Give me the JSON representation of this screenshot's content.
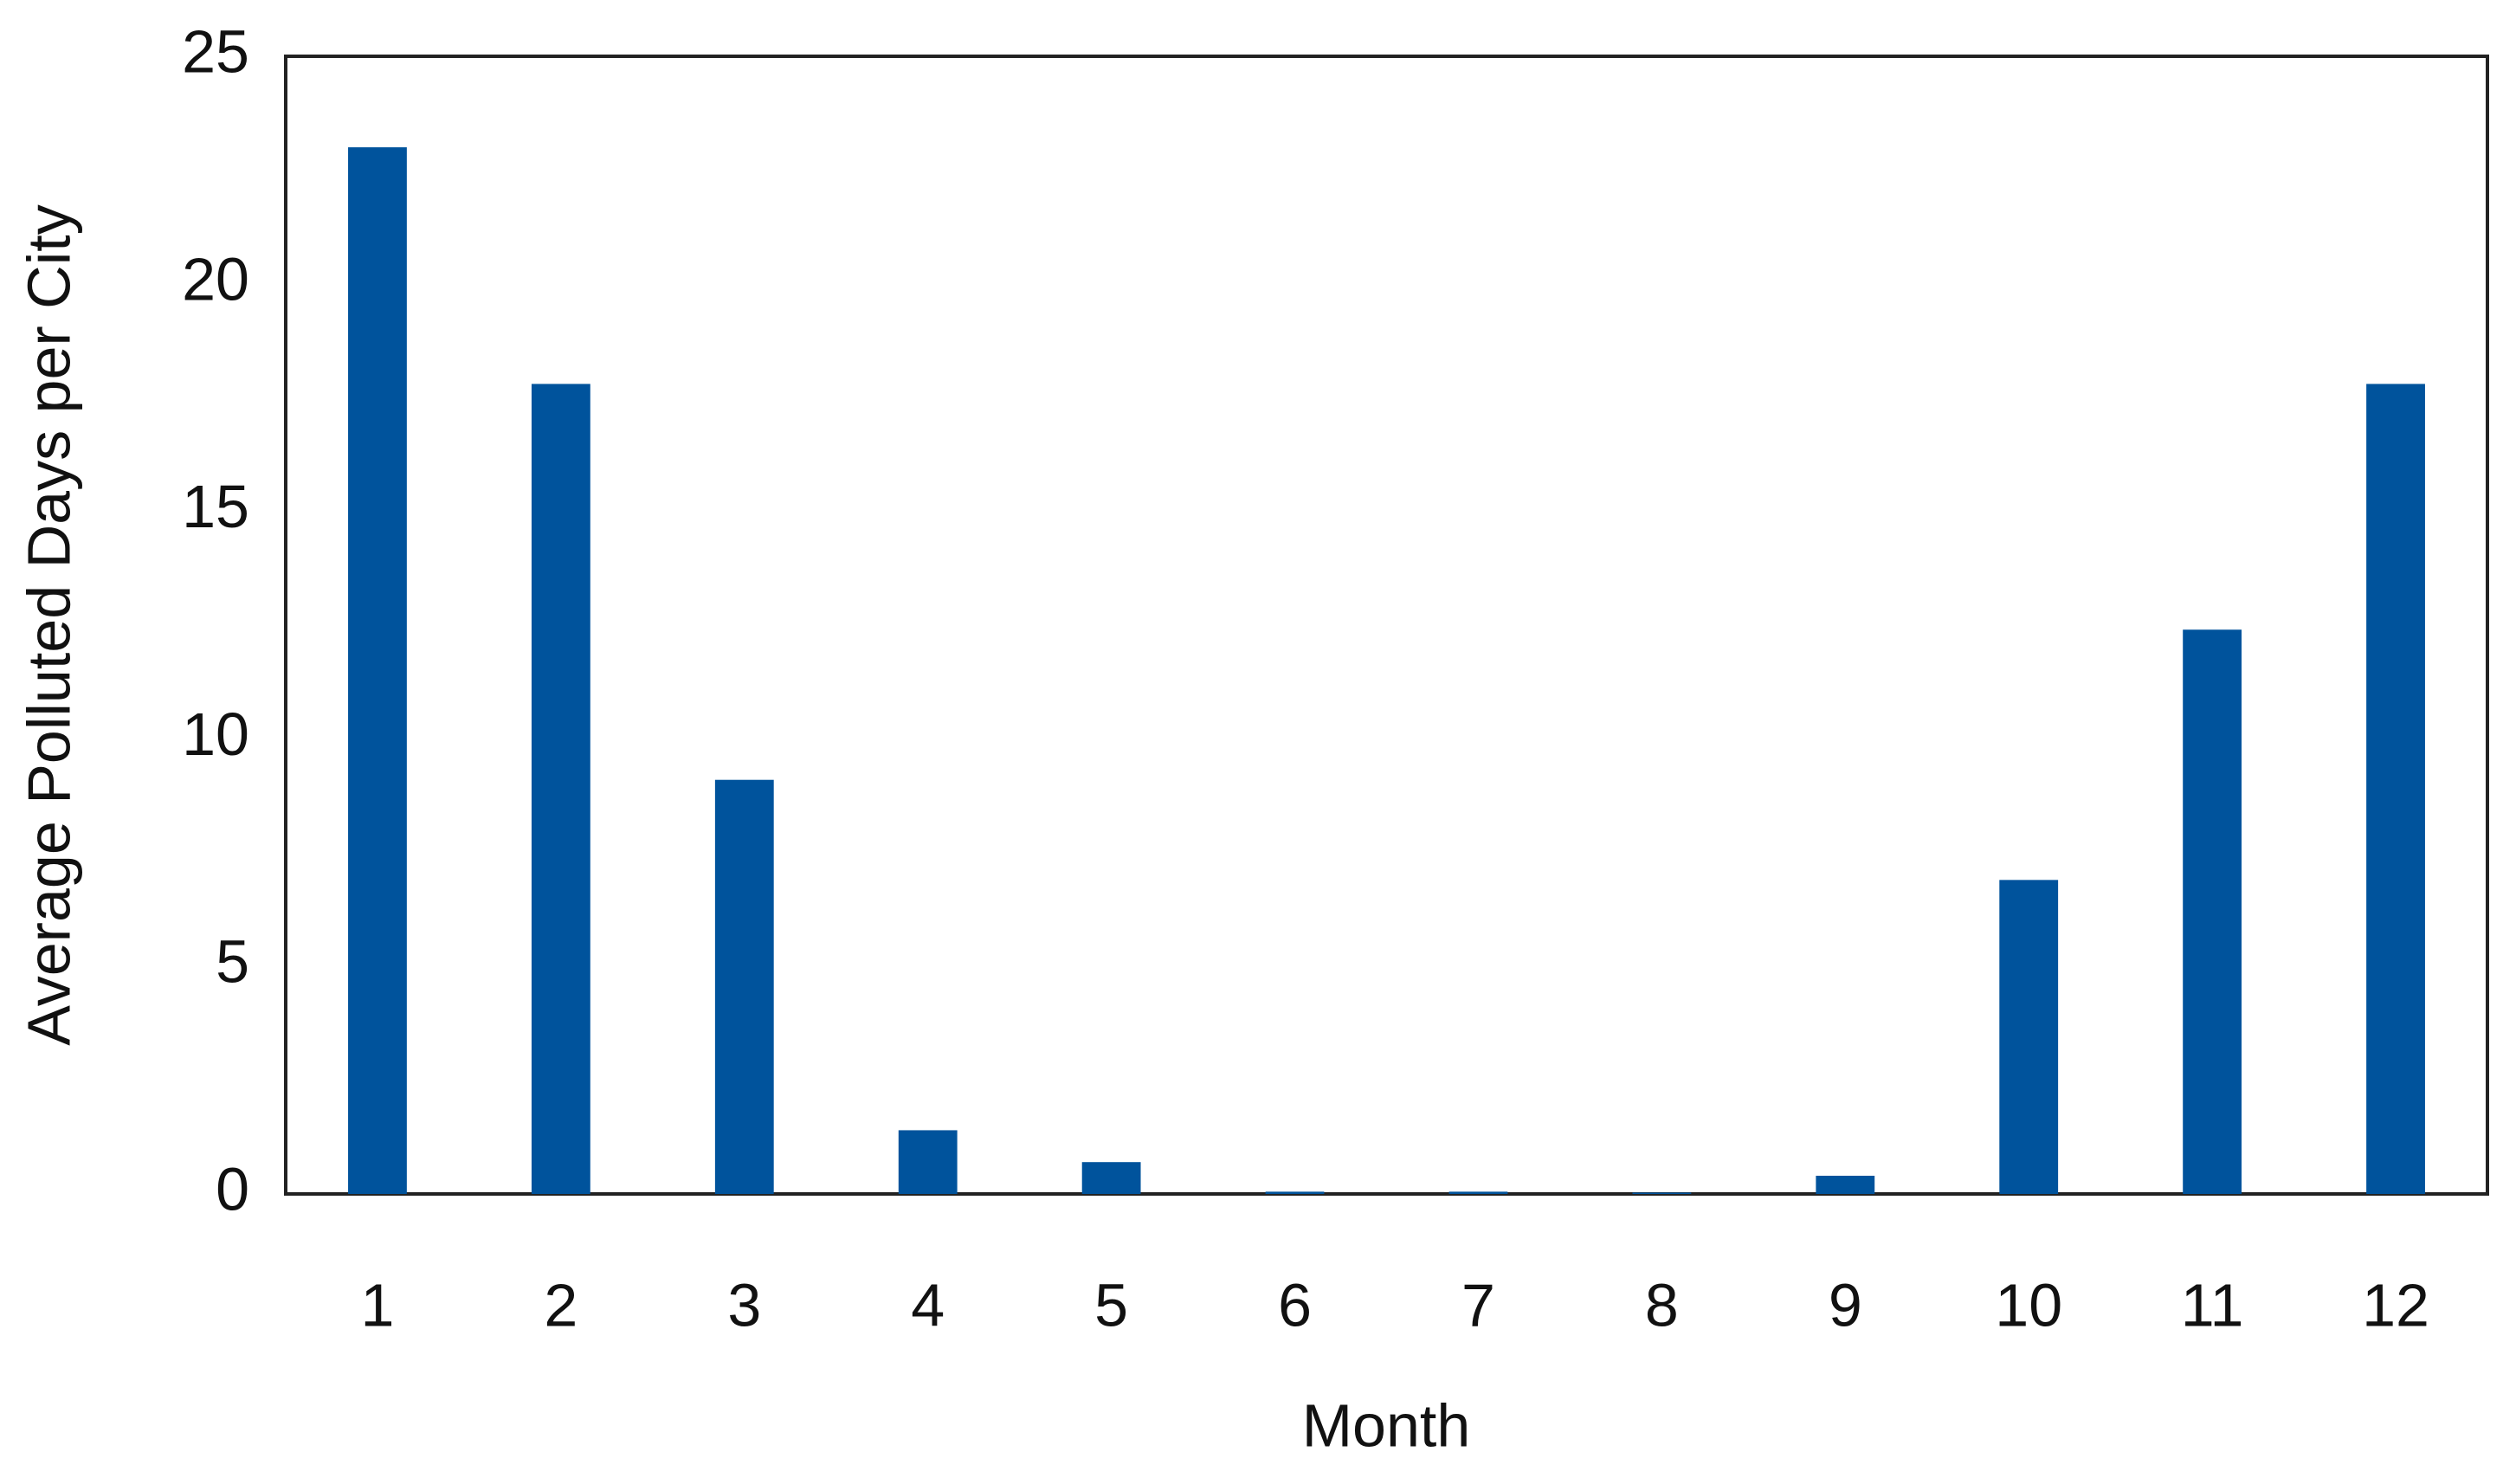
{
  "chart_data": {
    "type": "bar",
    "x_label": "Month",
    "y_label": "Average Polluted Days per City",
    "categories": [
      "1",
      "2",
      "3",
      "4",
      "5",
      "6",
      "7",
      "8",
      "9",
      "10",
      "11",
      "12"
    ],
    "values": [
      23.0,
      17.8,
      9.1,
      1.4,
      0.7,
      0.05,
      0.05,
      0.03,
      0.4,
      6.9,
      12.4,
      17.8
    ],
    "color": "#00539c",
    "ylim": [
      0,
      25
    ],
    "yticks": [
      0,
      5,
      10,
      15,
      20,
      25
    ],
    "grid": false
  }
}
